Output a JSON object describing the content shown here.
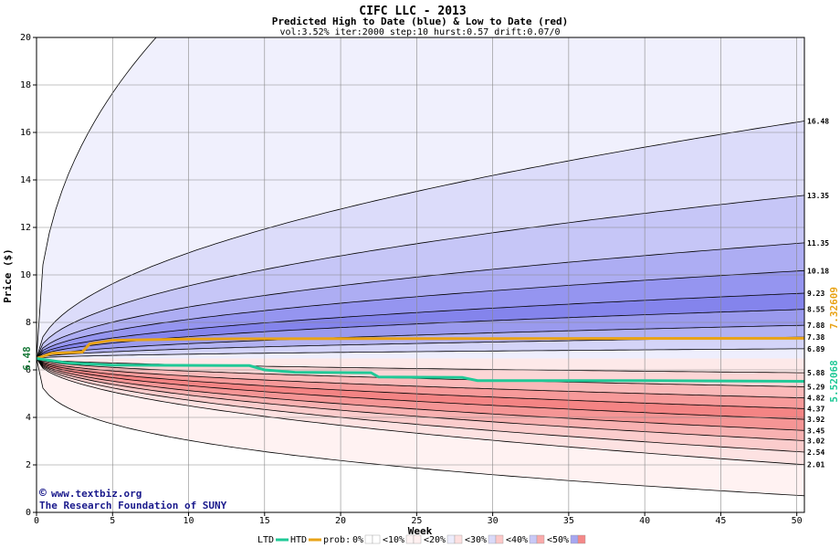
{
  "chart_data": {
    "type": "area",
    "title": "CIFC LLC - 2013",
    "subtitle": "Predicted High to Date (blue) &  Low to Date (red)",
    "params": "vol:3.52% iter:2000 step:10 hurst:0.57 drift:0.07/0",
    "xlabel": "Week",
    "ylabel": "Price ($)",
    "xlim": [
      0,
      50.5
    ],
    "ylim": [
      0,
      20
    ],
    "x_ticks": [
      "0",
      "5",
      "10",
      "15",
      "20",
      "25",
      "30",
      "35",
      "40",
      "45",
      "50"
    ],
    "y_ticks": [
      "0",
      "2",
      "4",
      "6",
      "8",
      "10",
      "12",
      "14",
      "16",
      "18",
      "20"
    ],
    "start_price": 6.48,
    "start_label": "6.48",
    "high_bands": [
      {
        "prob": "0%",
        "end": 20.0,
        "label": ""
      },
      {
        "prob": "10%",
        "end": 16.48,
        "label": "16.48"
      },
      {
        "prob": "20%",
        "end": 13.35,
        "label": "13.35"
      },
      {
        "prob": "30%",
        "end": 11.35,
        "label": "11.35"
      },
      {
        "prob": "40%",
        "end": 10.18,
        "label": "10.18"
      },
      {
        "prob": "50%",
        "end": 9.23,
        "label": "9.23"
      },
      {
        "prob": "60%",
        "end": 8.55,
        "label": "8.55"
      },
      {
        "prob": "70%",
        "end": 7.88,
        "label": "7.88"
      },
      {
        "prob": "80%",
        "end": 7.38,
        "label": "7.38"
      },
      {
        "prob": "90%",
        "end": 6.89,
        "label": "6.89"
      }
    ],
    "low_bands": [
      {
        "prob": "90%",
        "end": 5.88,
        "label": "5.88"
      },
      {
        "prob": "80%",
        "end": 5.29,
        "label": "5.29"
      },
      {
        "prob": "70%",
        "end": 4.82,
        "label": "4.82"
      },
      {
        "prob": "60%",
        "end": 4.37,
        "label": "4.37"
      },
      {
        "prob": "50%",
        "end": 3.92,
        "label": "3.92"
      },
      {
        "prob": "40%",
        "end": 3.45,
        "label": "3.45"
      },
      {
        "prob": "30%",
        "end": 3.02,
        "label": "3.02"
      },
      {
        "prob": "20%",
        "end": 2.54,
        "label": "2.54"
      },
      {
        "prob": "10%",
        "end": 2.01,
        "label": "2.01"
      },
      {
        "prob": "0%",
        "end": 0.7,
        "label": ""
      }
    ],
    "htd": {
      "name": "HTD",
      "color": "#e8a317",
      "points": [
        [
          0,
          6.48
        ],
        [
          1,
          6.7
        ],
        [
          3,
          6.75
        ],
        [
          3.5,
          7.1
        ],
        [
          5,
          7.25
        ],
        [
          10,
          7.3
        ],
        [
          20,
          7.32
        ],
        [
          30,
          7.32
        ],
        [
          50.5,
          7.33
        ]
      ],
      "end_label": "7.32609"
    },
    "ltd": {
      "name": "LTD",
      "color": "#20c997",
      "points": [
        [
          0,
          6.48
        ],
        [
          2,
          6.3
        ],
        [
          5,
          6.2
        ],
        [
          14,
          6.18
        ],
        [
          15,
          6.0
        ],
        [
          17,
          5.9
        ],
        [
          22,
          5.88
        ],
        [
          22.5,
          5.7
        ],
        [
          28,
          5.68
        ],
        [
          29,
          5.55
        ],
        [
          40,
          5.55
        ],
        [
          50.5,
          5.52
        ]
      ],
      "end_label": "5.52068"
    },
    "legend": {
      "ltd": "LTD",
      "htd": "HTD",
      "prob": "prob:",
      "items": [
        "0%",
        "<10%",
        "<20%",
        "<30%",
        "<40%",
        "<50%"
      ],
      "item_colors": [
        "#ffffff",
        "#fdf3f3",
        "#ececfb",
        "#d9d9f8",
        "#c8c8f6",
        "#a6a6f0"
      ],
      "item_reds": [
        "#ffffff",
        "#fff0f0",
        "#fde0e0",
        "#fcc8c8",
        "#f9aaaa",
        "#f48888"
      ]
    },
    "colors": {
      "high_fills": [
        "#f0f0fd",
        "#dcdcfa",
        "#c6c6f7",
        "#adadf3",
        "#9595f0",
        "#8484ec",
        "#9a9aee",
        "#b2b2f2",
        "#d4d4f8",
        "#eeeefd"
      ],
      "low_fills": [
        "#fde9e9",
        "#fcd6d6",
        "#fab9b9",
        "#f79a9a",
        "#f48484",
        "#f59595",
        "#f8b1b1",
        "#fbcccc",
        "#fde2e2",
        "#fff2f2"
      ],
      "grid": "#888888",
      "plot_bg": "#ffffff"
    },
    "grid": true
  },
  "credit": {
    "line1": "www.textbiz.org",
    "copyright_symbol": "©",
    "line2": "The Research Foundation of SUNY"
  }
}
